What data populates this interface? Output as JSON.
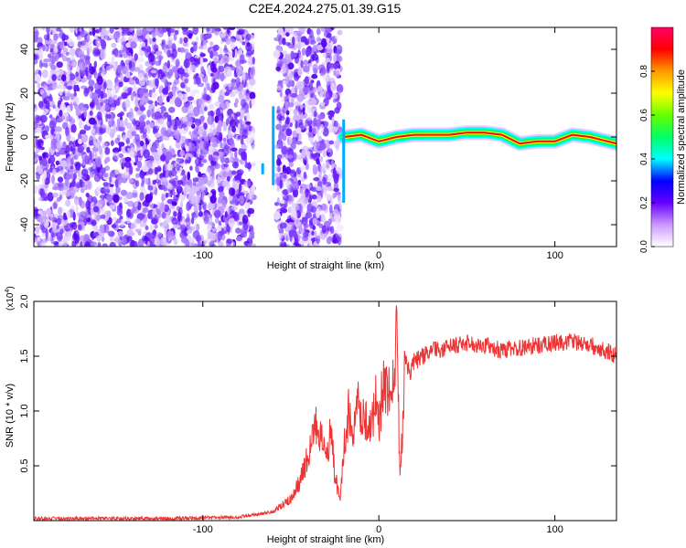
{
  "title": "C2E4.2024.275.01.39.G15",
  "chart_data": [
    {
      "type": "heatmap",
      "xlabel": "Height of straight line (km)",
      "ylabel": "Frequency (Hz)",
      "xlim": [
        -196,
        135
      ],
      "ylim": [
        -50,
        50
      ],
      "xticks": [
        -100,
        0,
        100
      ],
      "yticks": [
        -40,
        -20,
        0,
        20,
        40
      ],
      "grid": false,
      "colorbar": {
        "label": "Normalized spectral amplitude",
        "range": [
          0,
          1
        ],
        "ticks": [
          "0.0",
          "0.2",
          "0.4",
          "0.6",
          "0.8"
        ],
        "colors": [
          "#ffffff",
          "#cc99ff",
          "#6600ff",
          "#0000ff",
          "#00ffff",
          "#00ff66",
          "#66ff00",
          "#ffff00",
          "#ff9900",
          "#ff0000",
          "#ff0066"
        ]
      },
      "regions": [
        {
          "name": "noise",
          "x": [
            -196,
            -71
          ],
          "freq": [
            -50,
            50
          ]
        },
        {
          "name": "noise",
          "x": [
            -58,
            -22
          ],
          "freq": [
            -50,
            50
          ]
        },
        {
          "name": "signal_line",
          "x": [
            -20,
            135
          ],
          "freq_center": 0
        }
      ],
      "signal_trace": {
        "x": [
          -20,
          -10,
          0,
          10,
          20,
          30,
          40,
          50,
          60,
          70,
          80,
          90,
          100,
          110,
          120,
          130,
          135
        ],
        "freq": [
          0,
          1,
          -2,
          0,
          1,
          1,
          1,
          2,
          2,
          1,
          -3,
          -2,
          -2,
          1,
          0,
          -2,
          -3
        ]
      }
    },
    {
      "type": "line",
      "xlabel": "Height of straight line (km)",
      "ylabel": "SNR (10 * v/v)",
      "y_multiplier": "(x10",
      "y_multiplier_exp": "4",
      "xlim": [
        -196,
        135
      ],
      "ylim": [
        0,
        2.0
      ],
      "xticks": [
        -100,
        0,
        100
      ],
      "yticks": [
        "0.5",
        "1.0",
        "1.5",
        "2.0"
      ],
      "grid": false,
      "color": "#ee3333",
      "x": [
        -196,
        -120,
        -80,
        -60,
        -50,
        -45,
        -40,
        -35,
        -30,
        -27,
        -25,
        -22,
        -20,
        -17,
        -15,
        -12,
        -10,
        -7,
        -5,
        -2,
        0,
        2,
        5,
        7,
        9,
        10,
        11,
        12,
        15,
        18,
        20,
        25,
        30,
        40,
        50,
        60,
        70,
        80,
        90,
        100,
        110,
        120,
        130,
        135
      ],
      "y": [
        0.02,
        0.02,
        0.03,
        0.08,
        0.2,
        0.35,
        0.6,
        0.9,
        0.55,
        0.85,
        0.4,
        0.2,
        0.65,
        1.0,
        0.7,
        1.05,
        0.85,
        0.95,
        0.8,
        1.1,
        0.85,
        1.2,
        1.15,
        1.1,
        1.3,
        2.0,
        1.1,
        0.4,
        1.45,
        1.35,
        1.45,
        1.5,
        1.55,
        1.58,
        1.62,
        1.6,
        1.55,
        1.58,
        1.6,
        1.62,
        1.63,
        1.6,
        1.55,
        1.5
      ]
    }
  ]
}
